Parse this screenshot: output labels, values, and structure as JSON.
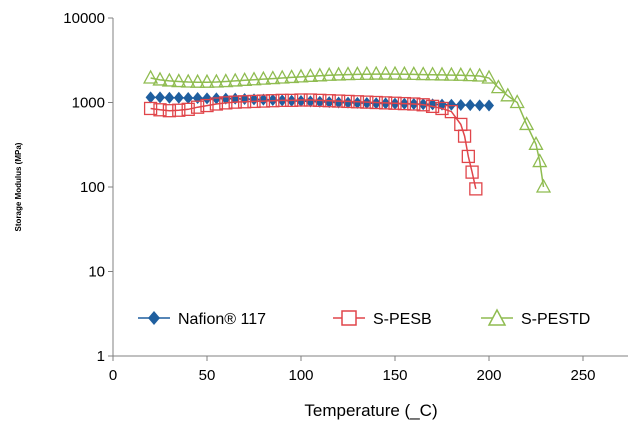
{
  "chart_data": {
    "type": "line",
    "title": "",
    "xlabel": "Temperature (_C)",
    "ylabel": "Storage Modulus (MPa)",
    "xlim": [
      0,
      250
    ],
    "ylim": [
      1,
      10000
    ],
    "yscale": "log",
    "x_ticks": [
      "0",
      "50",
      "100",
      "150",
      "200",
      "250"
    ],
    "y_ticks": [
      "1",
      "10",
      "100",
      "1000",
      "10000"
    ],
    "grid": false,
    "legend_position": "bottom-inside",
    "series": [
      {
        "name": "Nafion® 117",
        "color": "#1f5f9f",
        "marker": "diamond",
        "x": [
          20,
          25,
          30,
          35,
          40,
          45,
          50,
          55,
          60,
          65,
          70,
          75,
          80,
          85,
          90,
          95,
          100,
          105,
          110,
          115,
          120,
          125,
          130,
          135,
          140,
          145,
          150,
          155,
          160,
          165,
          170,
          175,
          180,
          185,
          190,
          195,
          200
        ],
        "y": [
          1150,
          1150,
          1140,
          1140,
          1130,
          1130,
          1120,
          1120,
          1110,
          1110,
          1100,
          1090,
          1080,
          1070,
          1060,
          1050,
          1040,
          1030,
          1020,
          1010,
          1000,
          995,
          990,
          985,
          980,
          975,
          970,
          965,
          960,
          955,
          950,
          945,
          940,
          935,
          930,
          925,
          920
        ]
      },
      {
        "name": "S-PESB",
        "color": "#e0454a",
        "marker": "square",
        "x": [
          20,
          25,
          30,
          35,
          40,
          45,
          50,
          55,
          60,
          65,
          70,
          75,
          80,
          85,
          90,
          95,
          100,
          105,
          110,
          115,
          120,
          125,
          130,
          135,
          140,
          145,
          150,
          155,
          160,
          165,
          170,
          175,
          180,
          185,
          187,
          189,
          191,
          193
        ],
        "y": [
          850,
          820,
          800,
          810,
          830,
          880,
          920,
          960,
          990,
          1010,
          1020,
          1030,
          1040,
          1050,
          1060,
          1060,
          1070,
          1070,
          1060,
          1050,
          1040,
          1030,
          1020,
          1010,
          1000,
          990,
          980,
          970,
          960,
          940,
          900,
          850,
          780,
          550,
          400,
          230,
          150,
          95
        ]
      },
      {
        "name": "S-PESTD",
        "color": "#8fbc50",
        "marker": "triangle",
        "x": [
          20,
          25,
          30,
          35,
          40,
          45,
          50,
          55,
          60,
          65,
          70,
          75,
          80,
          85,
          90,
          95,
          100,
          105,
          110,
          115,
          120,
          125,
          130,
          135,
          140,
          145,
          150,
          155,
          160,
          165,
          170,
          175,
          180,
          185,
          190,
          195,
          200,
          205,
          210,
          215,
          220,
          225,
          227,
          229
        ],
        "y": [
          1950,
          1850,
          1800,
          1770,
          1750,
          1740,
          1740,
          1750,
          1770,
          1800,
          1830,
          1860,
          1890,
          1920,
          1950,
          1980,
          2010,
          2040,
          2070,
          2100,
          2120,
          2140,
          2150,
          2160,
          2170,
          2170,
          2170,
          2160,
          2150,
          2140,
          2130,
          2120,
          2110,
          2100,
          2080,
          2060,
          1950,
          1500,
          1200,
          1000,
          550,
          320,
          200,
          100
        ]
      }
    ]
  }
}
